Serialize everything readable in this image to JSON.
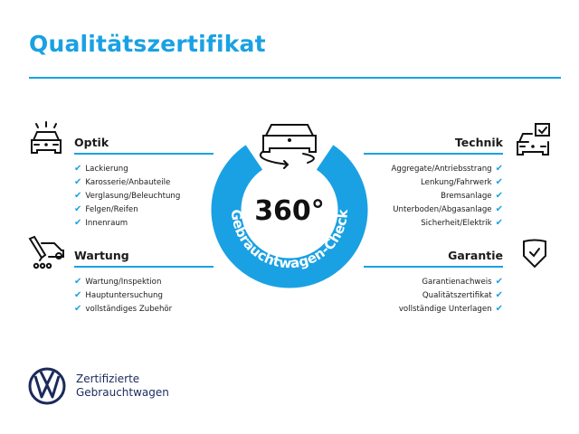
{
  "title": "Qualitätszertifikat",
  "colors": {
    "accent": "#1aa1e3",
    "brand": "#1b2a5c"
  },
  "badge": {
    "center_text": "360°",
    "arc_text": "Gebrauchtwagen-Check",
    "icon": "car-rotate-icon"
  },
  "sections": {
    "optik": {
      "heading": "Optik",
      "icon": "car-lights-icon",
      "items": [
        "Lackierung",
        "Karosserie/Anbauteile",
        "Verglasung/Beleuchtung",
        "Felgen/Reifen",
        "Innenraum"
      ]
    },
    "wartung": {
      "heading": "Wartung",
      "icon": "service-tool-icon",
      "items": [
        "Wartung/Inspektion",
        "Hauptuntersuchung",
        "vollständiges Zubehör"
      ]
    },
    "technik": {
      "heading": "Technik",
      "icon": "car-checkbox-icon",
      "items": [
        "Aggregate/Antriebsstrang",
        "Lenkung/Fahrwerk",
        "Bremsanlage",
        "Unterboden/Abgasanlage",
        "Sicherheit/Elektrik"
      ]
    },
    "garantie": {
      "heading": "Garantie",
      "icon": "shield-check-icon",
      "items": [
        "Garantienachweis",
        "Qualitätszertifikat",
        "vollständige Unterlagen"
      ]
    }
  },
  "check_mark": "✔",
  "footer": {
    "logo": "VW",
    "line1": "Zertifizierte",
    "line2": "Gebrauchtwagen"
  }
}
